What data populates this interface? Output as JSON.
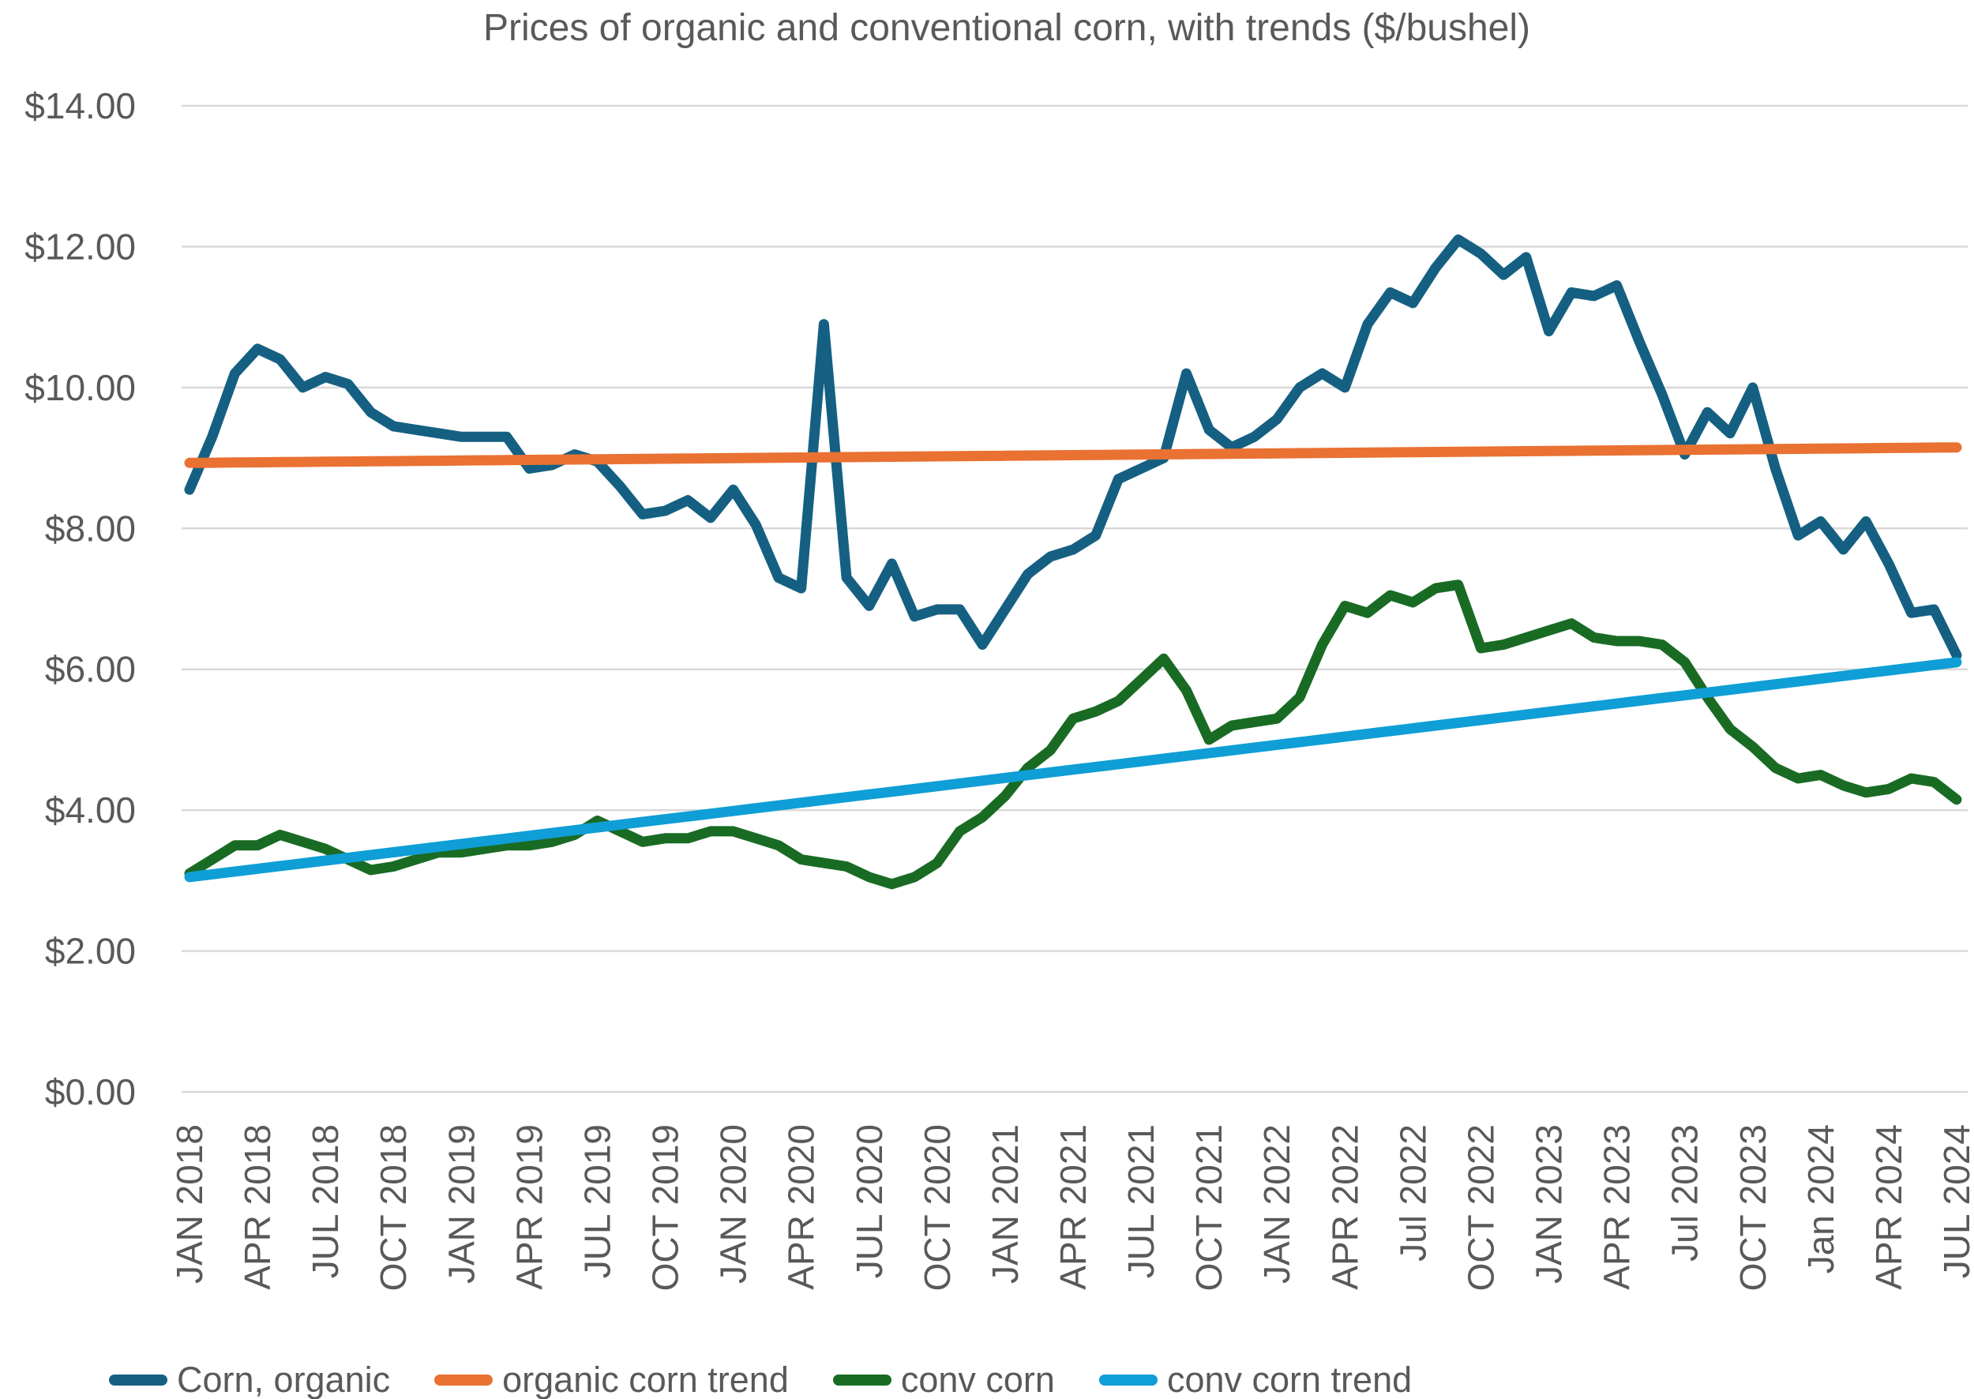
{
  "title": "Prices of organic and conventional corn, with trends ($/bushel)",
  "colors": {
    "organic_line": "#156082",
    "organic_trend": "#E97132",
    "conv_line": "#196B24",
    "conv_trend": "#0F9ED5",
    "gridline": "#D9D9D9",
    "axis_text": "#595959",
    "title_text": "#595959",
    "background": "#FFFFFF"
  },
  "chart_data": {
    "type": "line",
    "title": "Prices of organic and conventional corn, with trends ($/bushel)",
    "xlabel": "",
    "ylabel": "",
    "grid": "horizontal",
    "legend_position": "bottom-left",
    "y_axis": {
      "min": 0,
      "max": 14,
      "step": 2,
      "tick_labels": [
        "$14.00",
        "$12.00",
        "$10.00",
        "$8.00",
        "$6.00",
        "$4.00",
        "$2.00",
        "$0.00"
      ]
    },
    "x_axis": {
      "n_points": 79,
      "points_per_tick": 3,
      "tick_labels": [
        "JAN 2018",
        "APR 2018",
        "JUL 2018",
        "OCT 2018",
        "JAN 2019",
        "APR 2019",
        "JUL 2019",
        "OCT 2019",
        "JAN 2020",
        "APR 2020",
        "JUL 2020",
        "OCT 2020",
        "JAN 2021",
        "APR 2021",
        "JUL 2021",
        "OCT 2021",
        "JAN 2022",
        "APR 2022",
        "Jul 2022",
        "OCT 2022",
        "JAN 2023",
        "APR 2023",
        "Jul 2023",
        "OCT 2023",
        "Jan 2024",
        "APR 2024",
        "JUL 2024"
      ]
    },
    "series": [
      {
        "name": "Corn, organic",
        "color": "#156082",
        "kind": "data",
        "values": [
          8.55,
          9.3,
          10.2,
          10.55,
          10.4,
          10.0,
          10.15,
          10.05,
          9.65,
          9.45,
          9.4,
          9.35,
          9.3,
          9.3,
          9.3,
          8.85,
          8.9,
          9.05,
          8.95,
          8.6,
          8.2,
          8.25,
          8.4,
          8.15,
          8.55,
          8.05,
          7.3,
          7.15,
          10.9,
          7.3,
          6.9,
          7.5,
          6.75,
          6.85,
          6.85,
          6.35,
          6.85,
          7.35,
          7.6,
          7.7,
          7.9,
          8.7,
          8.85,
          9.0,
          10.2,
          9.4,
          9.15,
          9.3,
          9.55,
          10.0,
          10.2,
          10.0,
          10.9,
          11.35,
          11.2,
          11.7,
          12.1,
          11.9,
          11.6,
          11.85,
          10.8,
          11.35,
          11.3,
          11.45,
          10.65,
          9.9,
          9.05,
          9.65,
          9.35,
          10.0,
          8.85,
          7.9,
          8.1,
          7.7,
          8.1,
          7.5,
          6.8,
          6.85,
          6.2
        ]
      },
      {
        "name": "organic corn trend",
        "color": "#E97132",
        "kind": "trend",
        "endpoints": [
          8.93,
          9.15
        ]
      },
      {
        "name": "conv corn",
        "color": "#196B24",
        "kind": "data",
        "values": [
          3.1,
          3.3,
          3.5,
          3.5,
          3.65,
          3.55,
          3.45,
          3.3,
          3.15,
          3.2,
          3.3,
          3.4,
          3.4,
          3.45,
          3.5,
          3.5,
          3.55,
          3.65,
          3.85,
          3.7,
          3.55,
          3.6,
          3.6,
          3.7,
          3.7,
          3.6,
          3.5,
          3.3,
          3.25,
          3.2,
          3.05,
          2.95,
          3.05,
          3.25,
          3.7,
          3.9,
          4.2,
          4.6,
          4.85,
          5.3,
          5.4,
          5.55,
          5.85,
          6.15,
          5.7,
          5.0,
          5.2,
          5.25,
          5.3,
          5.6,
          6.35,
          6.9,
          6.8,
          7.05,
          6.95,
          7.15,
          7.2,
          6.3,
          6.35,
          6.45,
          6.55,
          6.65,
          6.45,
          6.4,
          6.4,
          6.35,
          6.1,
          5.6,
          5.15,
          4.9,
          4.6,
          4.45,
          4.5,
          4.35,
          4.25,
          4.3,
          4.45,
          4.4,
          4.15
        ]
      },
      {
        "name": "conv corn trend",
        "color": "#0F9ED5",
        "kind": "trend",
        "endpoints": [
          3.05,
          6.1
        ]
      }
    ]
  }
}
